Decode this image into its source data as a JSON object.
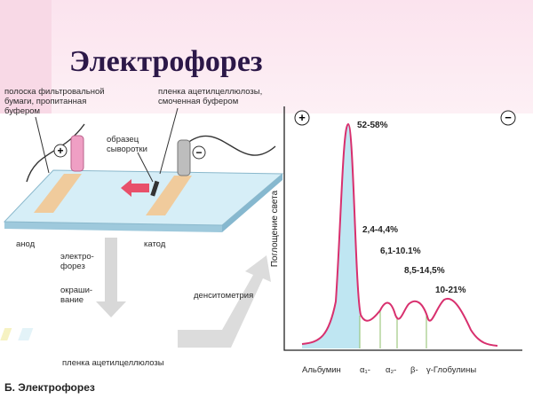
{
  "header": {
    "title": "Электрофорез"
  },
  "apparatus": {
    "filter_strip_label": [
      "полоска фильтровальной",
      "бумаги, пропитанная",
      "буфером"
    ],
    "film_label": [
      "пленка ацетилцеллюлозы,",
      "смоченная буфером"
    ],
    "sample_label": [
      "образец",
      "сыворотки"
    ],
    "anode_sign": "+",
    "cathode_sign": "−",
    "anode": "анод",
    "cathode": "катод"
  },
  "steps": {
    "electrophoresis": [
      "электро-",
      "форез"
    ],
    "staining": [
      "окраши-",
      "вание"
    ],
    "film": "пленка ацетилцеллюлозы",
    "densitometry": "денситометрия"
  },
  "densitogram": {
    "plus": "+",
    "minus": "−",
    "y_axis_label": "Поглощение света",
    "fractions": [
      "52-58%",
      "2,4-4,4%",
      "6,1-10.1%",
      "8,5-14,5%",
      "10-21%"
    ],
    "x_labels": [
      "Альбумин",
      "α₁-",
      "α₂-",
      "β-",
      "γ-Глобулины"
    ]
  },
  "caption": "Б. Электрофорез"
}
